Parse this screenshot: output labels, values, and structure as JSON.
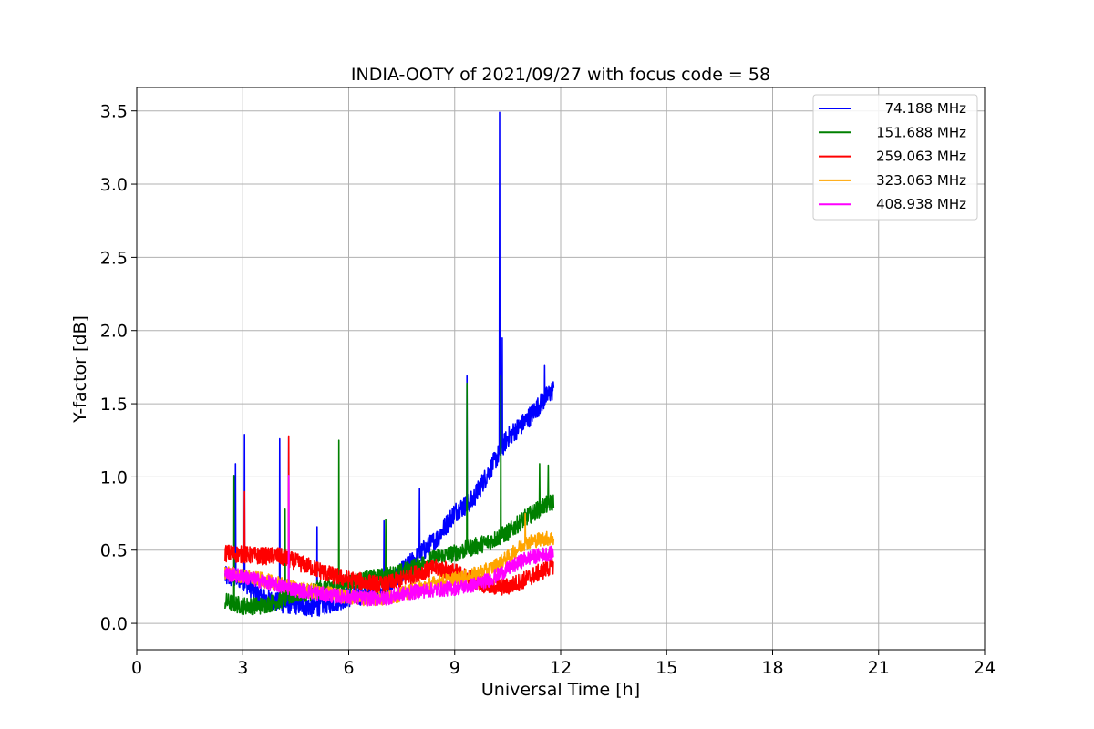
{
  "chart_data": {
    "type": "line",
    "title": "INDIA-OOTY of 2021/09/27 with focus code = 58",
    "xlabel": "Universal Time [h]",
    "ylabel": "Y-factor [dB]",
    "xlim": [
      0,
      24
    ],
    "ylim": [
      -0.18,
      3.66
    ],
    "xticks": [
      0,
      3,
      6,
      9,
      12,
      15,
      18,
      21,
      24
    ],
    "yticks": [
      0.0,
      0.5,
      1.0,
      1.5,
      2.0,
      2.5,
      3.0,
      3.5
    ],
    "ytick_labels": [
      "0.0",
      "0.5",
      "1.0",
      "1.5",
      "2.0",
      "2.5",
      "3.0",
      "3.5"
    ],
    "grid": true,
    "legend_position": "top-right",
    "series": [
      {
        "name": "74.188 MHz",
        "color": "#0000ff",
        "x": [
          2.5,
          3,
          3.5,
          4,
          4.5,
          5,
          5.5,
          6,
          6.5,
          7,
          7.5,
          8,
          8.5,
          9,
          9.5,
          10,
          10.5,
          11,
          11.5,
          11.8
        ],
        "y": [
          0.32,
          0.3,
          0.18,
          0.14,
          0.13,
          0.11,
          0.14,
          0.18,
          0.2,
          0.22,
          0.35,
          0.47,
          0.58,
          0.76,
          0.84,
          1.05,
          1.27,
          1.38,
          1.52,
          1.6
        ],
        "noise": 0.07,
        "spikes": [
          [
            2.8,
            1.09
          ],
          [
            3.05,
            1.29
          ],
          [
            4.05,
            1.26
          ],
          [
            4.3,
            1.27
          ],
          [
            5.1,
            0.66
          ],
          [
            7.0,
            0.7
          ],
          [
            8.0,
            0.92
          ],
          [
            9.35,
            1.69
          ],
          [
            10.27,
            3.49
          ],
          [
            10.35,
            1.95
          ],
          [
            11.55,
            1.76
          ]
        ]
      },
      {
        "name": "151.688 MHz",
        "color": "#008000",
        "x": [
          2.5,
          3,
          3.5,
          4,
          4.5,
          5,
          5.5,
          6,
          6.5,
          7,
          7.5,
          8,
          8.5,
          9,
          9.5,
          10,
          10.5,
          11,
          11.5,
          11.8
        ],
        "y": [
          0.15,
          0.12,
          0.12,
          0.15,
          0.2,
          0.22,
          0.26,
          0.28,
          0.3,
          0.32,
          0.35,
          0.4,
          0.45,
          0.48,
          0.52,
          0.56,
          0.62,
          0.72,
          0.8,
          0.83
        ],
        "noise": 0.06,
        "spikes": [
          [
            2.75,
            1.01
          ],
          [
            4.2,
            0.78
          ],
          [
            5.72,
            1.25
          ],
          [
            7.05,
            0.71
          ],
          [
            9.35,
            1.64
          ],
          [
            10.3,
            1.69
          ],
          [
            11.4,
            1.09
          ],
          [
            11.65,
            1.08
          ]
        ]
      },
      {
        "name": "259.063 MHz",
        "color": "#ff0000",
        "x": [
          2.5,
          3,
          3.5,
          4,
          4.5,
          5,
          5.5,
          6,
          6.5,
          7,
          7.5,
          8,
          8.5,
          9,
          9.5,
          10,
          10.5,
          11,
          11.5,
          11.8
        ],
        "y": [
          0.48,
          0.47,
          0.46,
          0.46,
          0.42,
          0.38,
          0.33,
          0.3,
          0.28,
          0.26,
          0.3,
          0.35,
          0.38,
          0.35,
          0.3,
          0.25,
          0.25,
          0.3,
          0.36,
          0.4
        ],
        "noise": 0.06,
        "spikes": [
          [
            3.05,
            0.9
          ],
          [
            4.3,
            1.28
          ]
        ]
      },
      {
        "name": "323.063 MHz",
        "color": "#ffa500",
        "x": [
          2.5,
          3,
          3.5,
          4,
          4.5,
          5,
          5.5,
          6,
          6.5,
          7,
          7.5,
          8,
          8.5,
          9,
          9.5,
          10,
          10.5,
          11,
          11.5,
          11.8
        ],
        "y": [
          0.35,
          0.32,
          0.3,
          0.27,
          0.24,
          0.22,
          0.2,
          0.18,
          0.17,
          0.17,
          0.2,
          0.24,
          0.28,
          0.3,
          0.33,
          0.37,
          0.45,
          0.55,
          0.58,
          0.58
        ],
        "noise": 0.05,
        "spikes": [
          [
            11.0,
            0.75
          ]
        ]
      },
      {
        "name": "408.938 MHz",
        "color": "#ff00ff",
        "x": [
          2.5,
          3,
          3.5,
          4,
          4.5,
          5,
          5.5,
          6,
          6.5,
          7,
          7.5,
          8,
          8.5,
          9,
          9.5,
          10,
          10.5,
          11,
          11.5,
          11.8
        ],
        "y": [
          0.34,
          0.32,
          0.29,
          0.26,
          0.23,
          0.21,
          0.19,
          0.18,
          0.17,
          0.17,
          0.2,
          0.22,
          0.23,
          0.24,
          0.26,
          0.3,
          0.37,
          0.44,
          0.47,
          0.48
        ],
        "noise": 0.05,
        "spikes": [
          [
            4.3,
            1.01
          ]
        ]
      }
    ]
  }
}
